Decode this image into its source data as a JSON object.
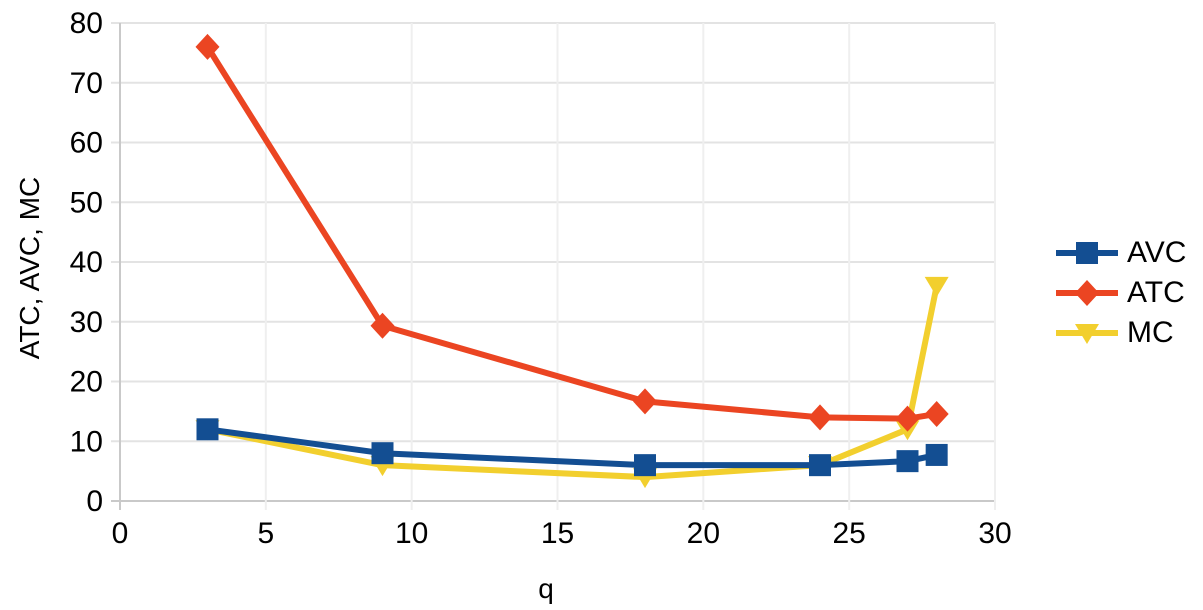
{
  "chart_data": {
    "type": "line",
    "title": "",
    "xlabel": "q",
    "ylabel": "ATC, AVC, MC",
    "x": [
      3,
      9,
      18,
      24,
      27,
      28
    ],
    "series": [
      {
        "name": "AVC",
        "color": "#134E92",
        "marker": "square",
        "values": [
          12,
          8,
          6,
          6,
          6.67,
          7.71
        ]
      },
      {
        "name": "ATC",
        "color": "#EB4522",
        "marker": "diamond",
        "values": [
          76,
          29.33,
          16.67,
          14,
          13.78,
          14.57
        ]
      },
      {
        "name": "MC",
        "color": "#F2CF2E",
        "marker": "triangle-down",
        "values": [
          12,
          6,
          4,
          6,
          12,
          36
        ]
      }
    ],
    "xlim": [
      0,
      30
    ],
    "ylim": [
      0,
      80
    ],
    "xticks": [
      0,
      5,
      10,
      15,
      20,
      25,
      30
    ],
    "yticks": [
      0,
      10,
      20,
      30,
      40,
      50,
      60,
      70,
      80
    ],
    "grid": true,
    "legend_position": "right",
    "draw_order": [
      "MC",
      "ATC",
      "AVC"
    ]
  },
  "style": {
    "background": "#FFFFFF",
    "text_color": "#000000",
    "axis_color": "#C9C9C9",
    "grid_color_horizontal": "#E3E3E3",
    "grid_color_vertical": "#EFEFEF"
  }
}
